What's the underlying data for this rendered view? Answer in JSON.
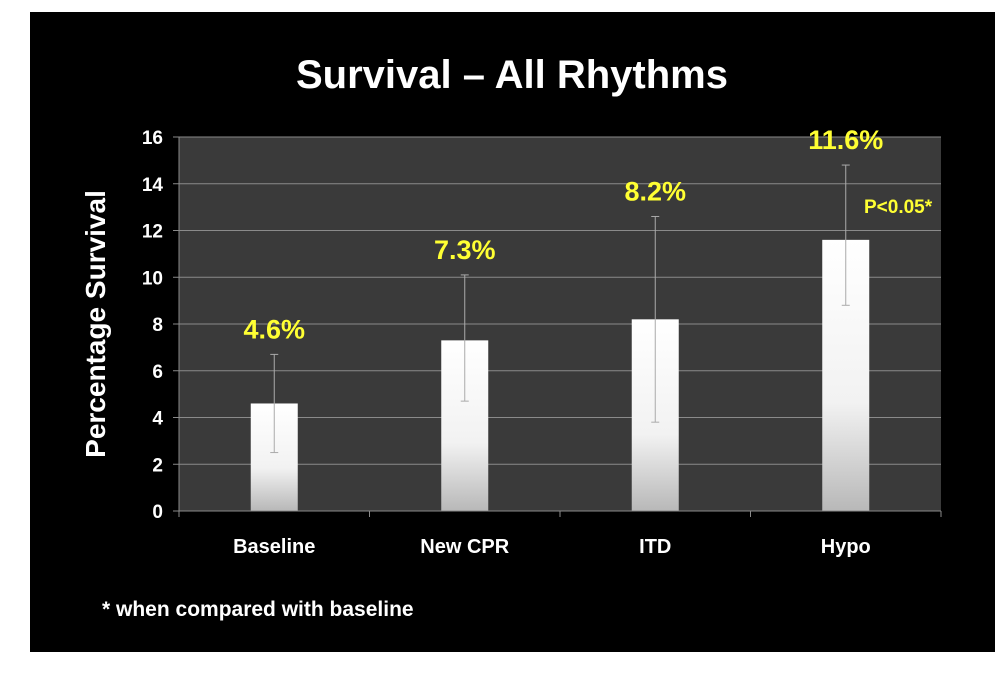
{
  "chart_data": {
    "type": "bar",
    "title": "Survival – All Rhythms",
    "ylabel": "Percentage Survival",
    "xlabel": "",
    "categories": [
      "Baseline",
      "New CPR",
      "ITD",
      "Hypo"
    ],
    "values": [
      4.6,
      7.3,
      8.2,
      11.6
    ],
    "data_labels": [
      "4.6%",
      "7.3%",
      "8.2%",
      "11.6%"
    ],
    "error_bars": [
      {
        "low": 2.5,
        "high": 6.7
      },
      {
        "low": 4.7,
        "high": 10.1
      },
      {
        "low": 3.8,
        "high": 12.6
      },
      {
        "low": 8.8,
        "high": 14.8
      }
    ],
    "ylim": [
      0,
      16
    ],
    "yticks": [
      0,
      2,
      4,
      6,
      8,
      10,
      12,
      14,
      16
    ],
    "grid": true,
    "annotation": "P<0.05*",
    "footnote": "* when compared with baseline",
    "colors": {
      "background": "#000000",
      "plot_area": "#3a3a3a",
      "gridline": "#8a8a8a",
      "bar_light": "#ffffff",
      "bar_dark": "#b8b8b8",
      "data_label": "#ffff33",
      "text": "#ffffff"
    }
  }
}
